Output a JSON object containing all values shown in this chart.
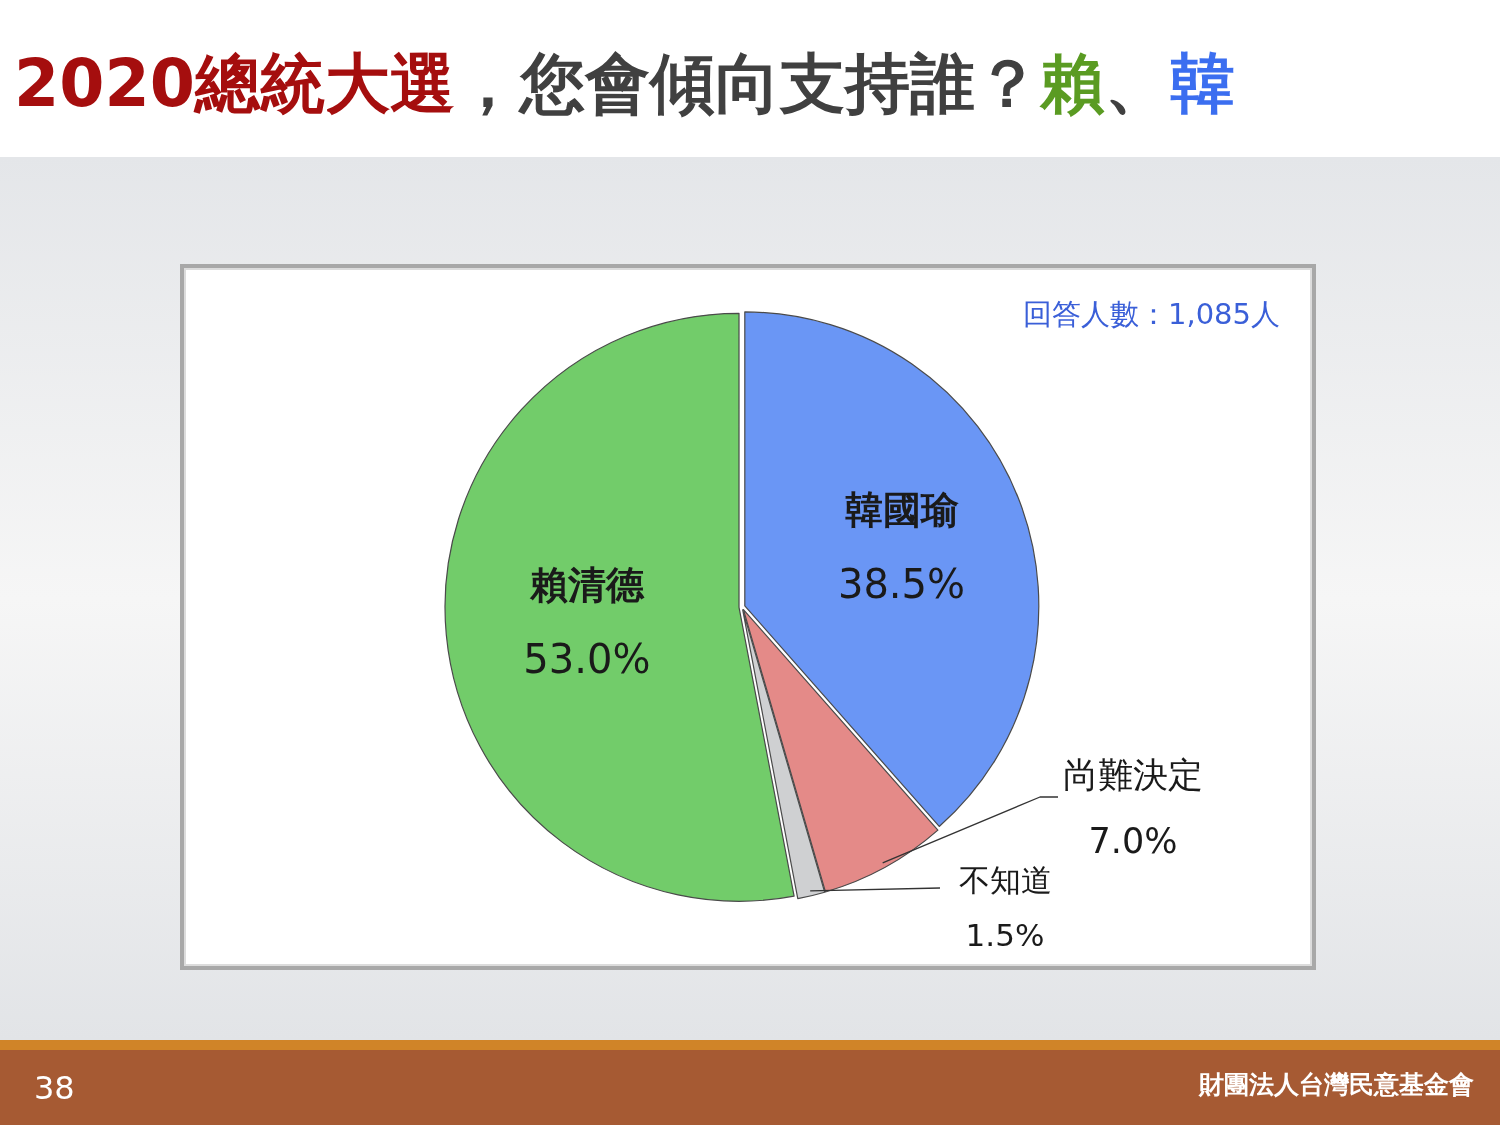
{
  "chart_data": {
    "type": "pie",
    "title": "2020總統大選，您會傾向支持誰？賴、韓",
    "categories": [
      "韓國瑜",
      "尚難決定",
      "不知道",
      "賴清德"
    ],
    "values": [
      38.5,
      7.0,
      1.5,
      53.0
    ],
    "colors": [
      "#6a96f5",
      "#e48a88",
      "#cfd0d2",
      "#72cc6a"
    ],
    "value_labels": [
      "38.5%",
      "7.0%",
      "1.5%",
      "53.0%"
    ],
    "annotations": [
      "回答人數：1,085人",
      "38",
      "財團法人台灣民意基金會"
    ]
  }
}
